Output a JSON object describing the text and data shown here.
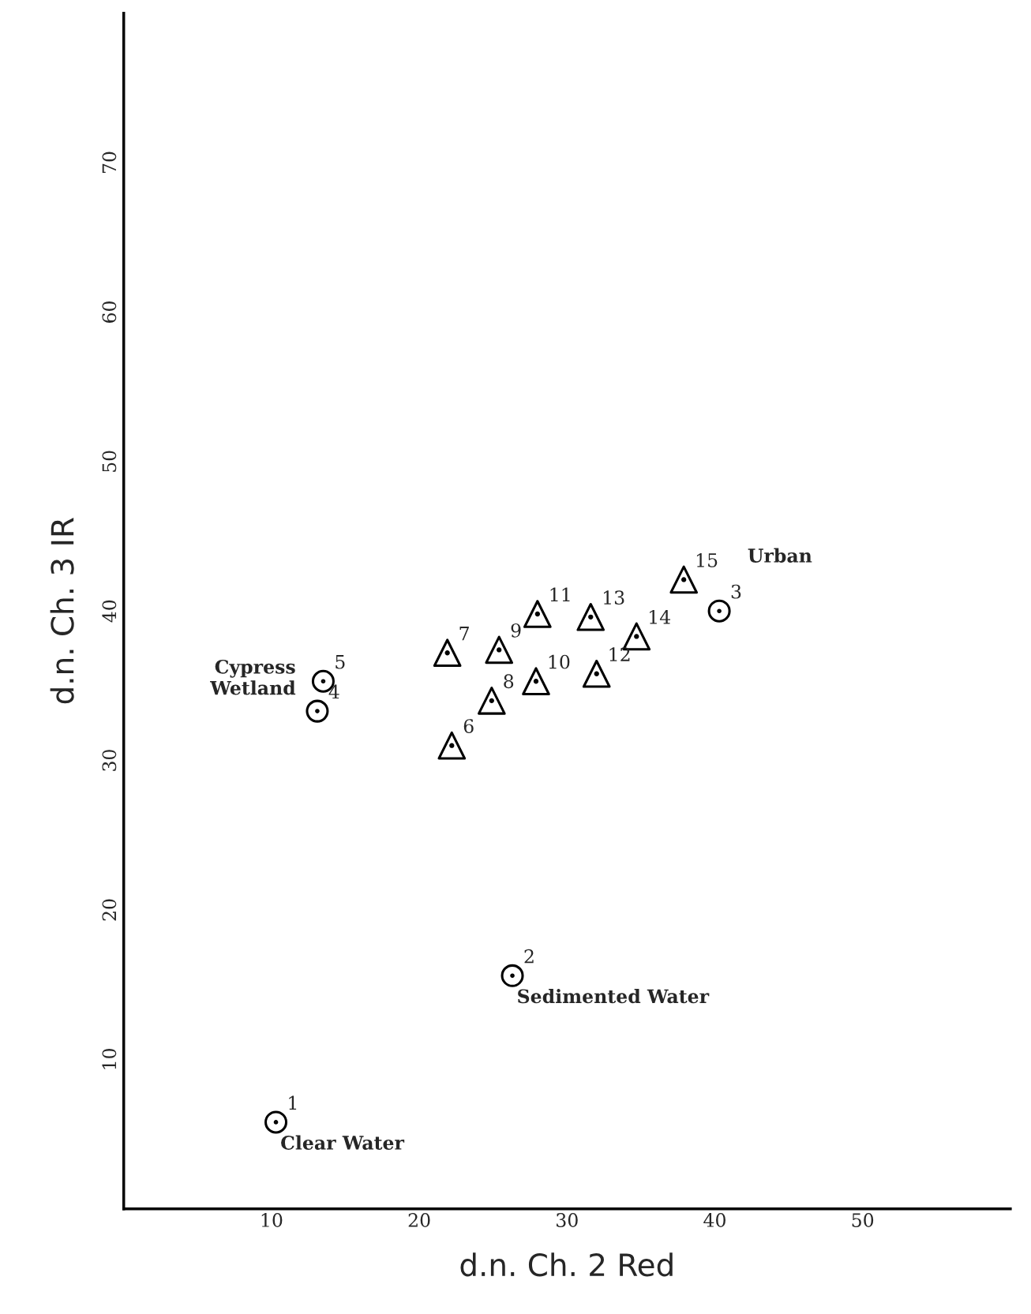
{
  "chart_data": {
    "type": "scatter",
    "xlabel": "d.n. Ch. 2 Red",
    "ylabel": "d.n. Ch. 3 IR",
    "xlim": [
      0,
      60
    ],
    "ylim": [
      0,
      80
    ],
    "xticks": [
      10,
      20,
      30,
      40,
      50
    ],
    "yticks": [
      10,
      20,
      30,
      40,
      50,
      60,
      70
    ],
    "grid": false,
    "legend": false,
    "series": [
      {
        "color": "#000000",
        "marker": "circle",
        "x": [
          10.3,
          26.3,
          40.3,
          13.1,
          13.5
        ],
        "values": [
          5.8,
          15.6,
          40.0,
          33.3,
          35.3
        ]
      },
      {
        "color": "#000000",
        "marker": "triangle",
        "x": [
          22.2,
          21.9,
          24.9,
          25.4,
          27.9,
          28.0,
          32.0,
          31.6,
          34.7,
          37.9
        ],
        "values": [
          31.0,
          37.2,
          34.0,
          37.4,
          35.3,
          39.8,
          35.8,
          39.6,
          38.3,
          42.1
        ]
      }
    ],
    "annotations": [
      {
        "text": "1",
        "x": 10.3,
        "y": 5.8
      },
      {
        "text": "2",
        "x": 26.3,
        "y": 15.6
      },
      {
        "text": "3",
        "x": 40.3,
        "y": 40.0
      },
      {
        "text": "4",
        "x": 13.1,
        "y": 33.3
      },
      {
        "text": "5",
        "x": 13.5,
        "y": 35.3
      },
      {
        "text": "6",
        "x": 22.2,
        "y": 31.0
      },
      {
        "text": "7",
        "x": 21.9,
        "y": 37.2
      },
      {
        "text": "8",
        "x": 24.9,
        "y": 34.0
      },
      {
        "text": "9",
        "x": 25.4,
        "y": 37.4
      },
      {
        "text": "10",
        "x": 27.9,
        "y": 35.3
      },
      {
        "text": "11",
        "x": 28.0,
        "y": 39.8
      },
      {
        "text": "12",
        "x": 32.0,
        "y": 35.8
      },
      {
        "text": "13",
        "x": 31.6,
        "y": 39.6
      },
      {
        "text": "14",
        "x": 34.7,
        "y": 38.3
      },
      {
        "text": "15",
        "x": 37.9,
        "y": 42.1
      },
      {
        "text": "Cypress\nWetland",
        "x": 13.5,
        "y": 35.3
      },
      "Urban",
      {
        "text": "Sedimented Water",
        "x": 26.3,
        "y": 15.6
      },
      {
        "text": "Clear Water",
        "x": 10.3,
        "y": 5.8
      }
    ]
  }
}
